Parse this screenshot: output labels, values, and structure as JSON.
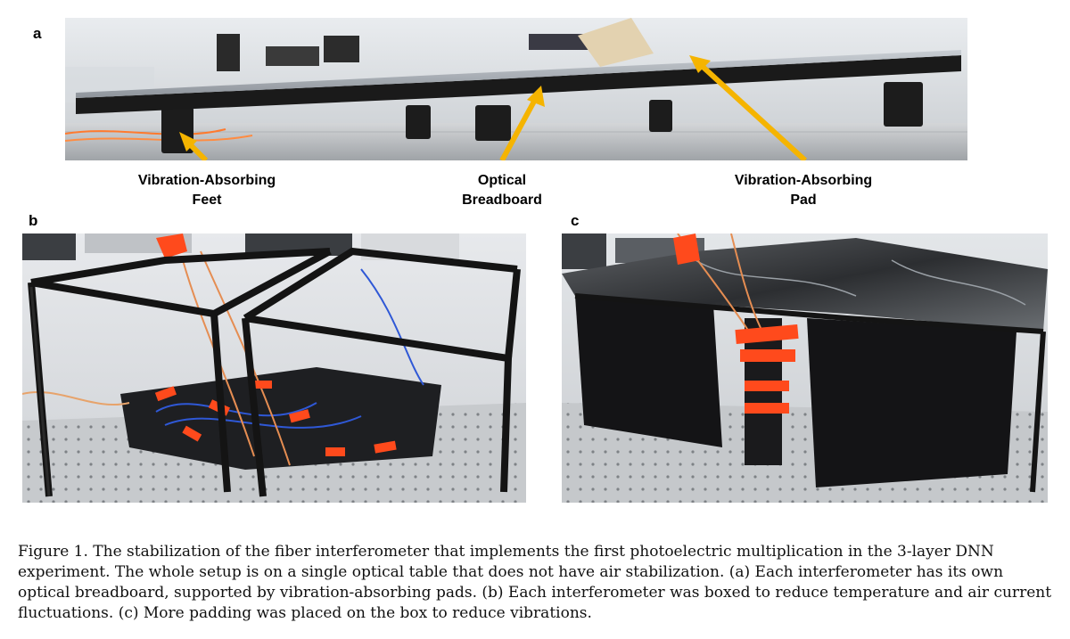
{
  "figure": {
    "panels": {
      "a": {
        "letter": "a",
        "callouts": [
          {
            "line1": "Vibration-Absorbing",
            "line2": "Feet"
          },
          {
            "line1": "Optical",
            "line2": "Breadboard"
          },
          {
            "line1": "Vibration-Absorbing",
            "line2": "Pad"
          }
        ]
      },
      "b": {
        "letter": "b"
      },
      "c": {
        "letter": "c"
      }
    },
    "caption": {
      "label": "Figure 1.",
      "text": "The stabilization of the fiber interferometer that implements the first photoelectric multiplication in the 3-layer DNN experiment. The whole setup is on a single optical table that does not have air stabilization. (a) Each interferometer has its own optical breadboard, supported by vibration-absorbing pads. (b) Each interferometer was boxed to reduce temperature and air current fluctuations. (c) More padding was placed on the box to reduce vibrations."
    },
    "colors": {
      "arrow": "#f5b400",
      "tape": "#ff4a1c",
      "frame": "#141414"
    }
  }
}
